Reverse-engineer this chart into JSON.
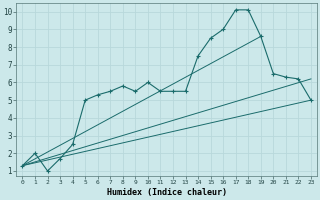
{
  "title": "",
  "xlabel": "Humidex (Indice chaleur)",
  "bg_color": "#cce8ea",
  "grid_color": "#b8d8db",
  "line_color": "#1a6b6b",
  "xlim": [
    -0.5,
    23.5
  ],
  "ylim": [
    0.7,
    10.5
  ],
  "xticks": [
    0,
    1,
    2,
    3,
    4,
    5,
    6,
    7,
    8,
    9,
    10,
    11,
    12,
    13,
    14,
    15,
    16,
    17,
    18,
    19,
    20,
    21,
    22,
    23
  ],
  "yticks": [
    1,
    2,
    3,
    4,
    5,
    6,
    7,
    8,
    9,
    10
  ],
  "series1_x": [
    0,
    1,
    2,
    3,
    4,
    5,
    6,
    7,
    8,
    9,
    10,
    11,
    12,
    13,
    14,
    15,
    16,
    17,
    18,
    19,
    20,
    21,
    22,
    23
  ],
  "series1_y": [
    1.3,
    2.0,
    1.0,
    1.7,
    2.5,
    5.0,
    5.3,
    5.5,
    5.8,
    5.5,
    6.0,
    5.5,
    5.5,
    5.5,
    7.5,
    8.5,
    9.0,
    10.1,
    10.1,
    8.6,
    6.5,
    6.3,
    6.2,
    5.0
  ],
  "series2_x": [
    0,
    19
  ],
  "series2_y": [
    1.3,
    8.6
  ],
  "series3_x": [
    0,
    23
  ],
  "series3_y": [
    1.3,
    5.0
  ],
  "series4_x": [
    0,
    23
  ],
  "series4_y": [
    1.3,
    6.2
  ]
}
